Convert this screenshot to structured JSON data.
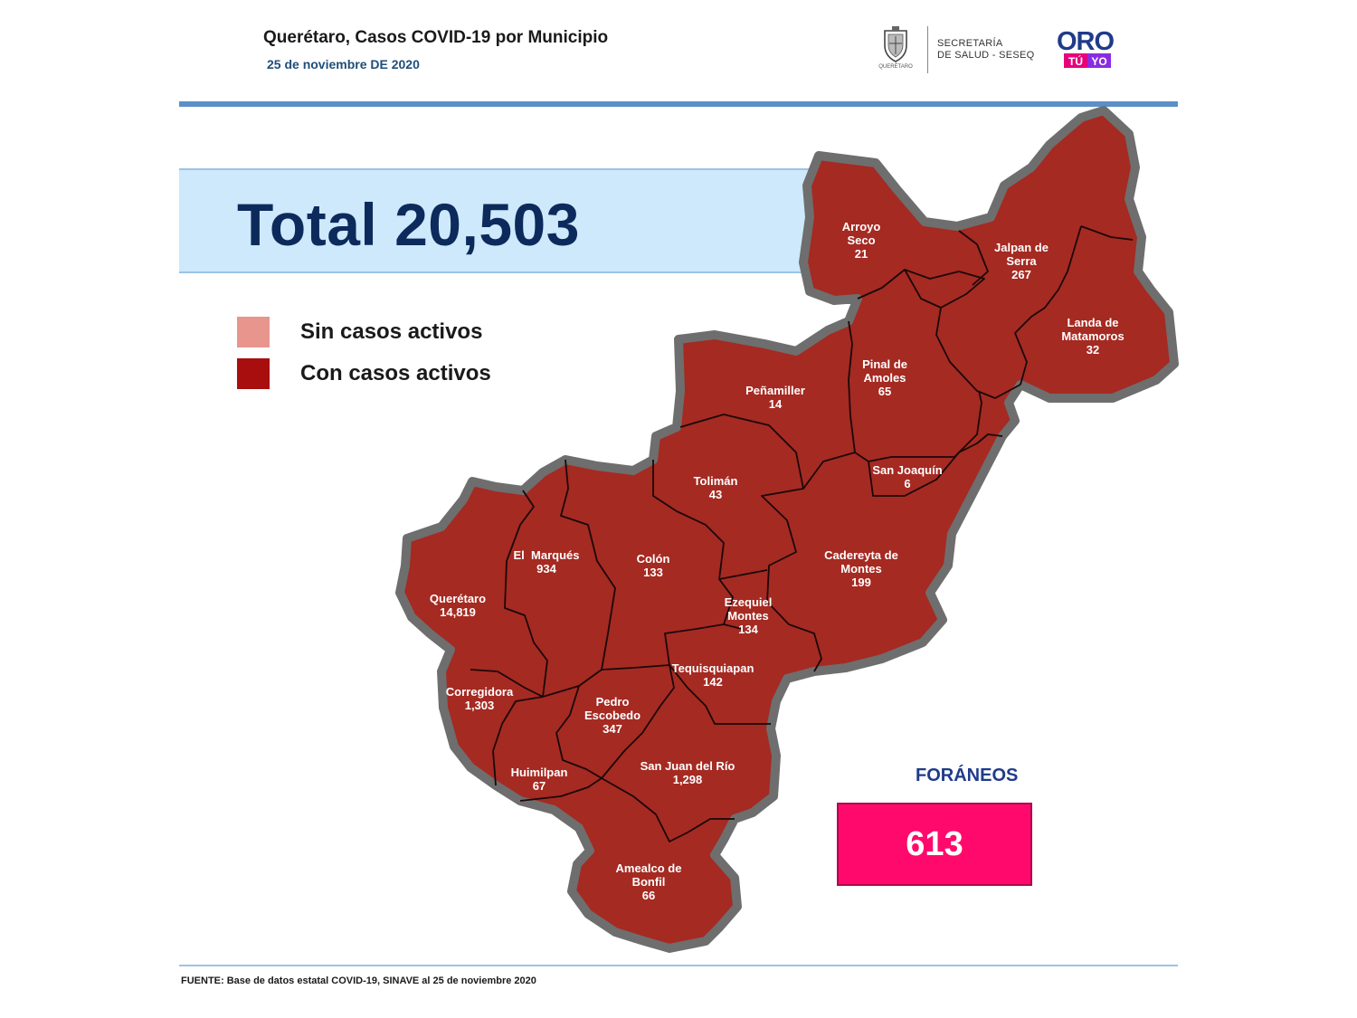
{
  "header": {
    "title": "Querétaro, Casos COVID-19 por Municipio",
    "date": "25 de noviembre DE 2020"
  },
  "logos": {
    "seal_caption": "QUERÉTARO",
    "secretaria_line1": "SECRETARÍA",
    "secretaria_line2": "DE SALUD - SESEQ",
    "oro": "ORO",
    "tu": "TÚ",
    "yo": "YO"
  },
  "total": {
    "text": "Total 20,503"
  },
  "legend": [
    {
      "label": "Sin casos activos",
      "color": "#e8958d"
    },
    {
      "label": "Con casos activos",
      "color": "#a80e0e"
    }
  ],
  "municipios": [
    {
      "name_lines": [
        "Arroyo",
        "Seco"
      ],
      "cases": "21"
    },
    {
      "name_lines": [
        "Jalpan de",
        "Serra"
      ],
      "cases": "267"
    },
    {
      "name_lines": [
        "Landa de",
        "Matamoros"
      ],
      "cases": "32"
    },
    {
      "name_lines": [
        "Pinal de",
        "Amoles"
      ],
      "cases": "65"
    },
    {
      "name_lines": [
        "Peñamiller"
      ],
      "cases": "14"
    },
    {
      "name_lines": [
        "San Joaquín"
      ],
      "cases": "6"
    },
    {
      "name_lines": [
        "Tolimán"
      ],
      "cases": "43"
    },
    {
      "name_lines": [
        "Cadereyta de",
        "Montes"
      ],
      "cases": "199"
    },
    {
      "name_lines": [
        "El  Marqués"
      ],
      "cases": "934"
    },
    {
      "name_lines": [
        "Colón"
      ],
      "cases": "133"
    },
    {
      "name_lines": [
        "Ezequiel",
        "Montes"
      ],
      "cases": "134"
    },
    {
      "name_lines": [
        "Querétaro"
      ],
      "cases": "14,819"
    },
    {
      "name_lines": [
        "Tequisquiapan"
      ],
      "cases": "142"
    },
    {
      "name_lines": [
        "Corregidora"
      ],
      "cases": "1,303"
    },
    {
      "name_lines": [
        "Pedro",
        "Escobedo"
      ],
      "cases": "347"
    },
    {
      "name_lines": [
        "San Juan del Río"
      ],
      "cases": "1,298"
    },
    {
      "name_lines": [
        "Huimilpan"
      ],
      "cases": "67"
    },
    {
      "name_lines": [
        "Amealco de",
        "Bonfil"
      ],
      "cases": "66"
    }
  ],
  "foraneos": {
    "label": "FORÁNEOS",
    "value": "613"
  },
  "source": "FUENTE:  Base de datos estatal COVID-19, SINAVE al 25 de noviembre 2020",
  "colors": {
    "map_fill": "#a52a22",
    "map_outline": "#6e6e6e",
    "foraneos_box": "#ff0a6c"
  }
}
